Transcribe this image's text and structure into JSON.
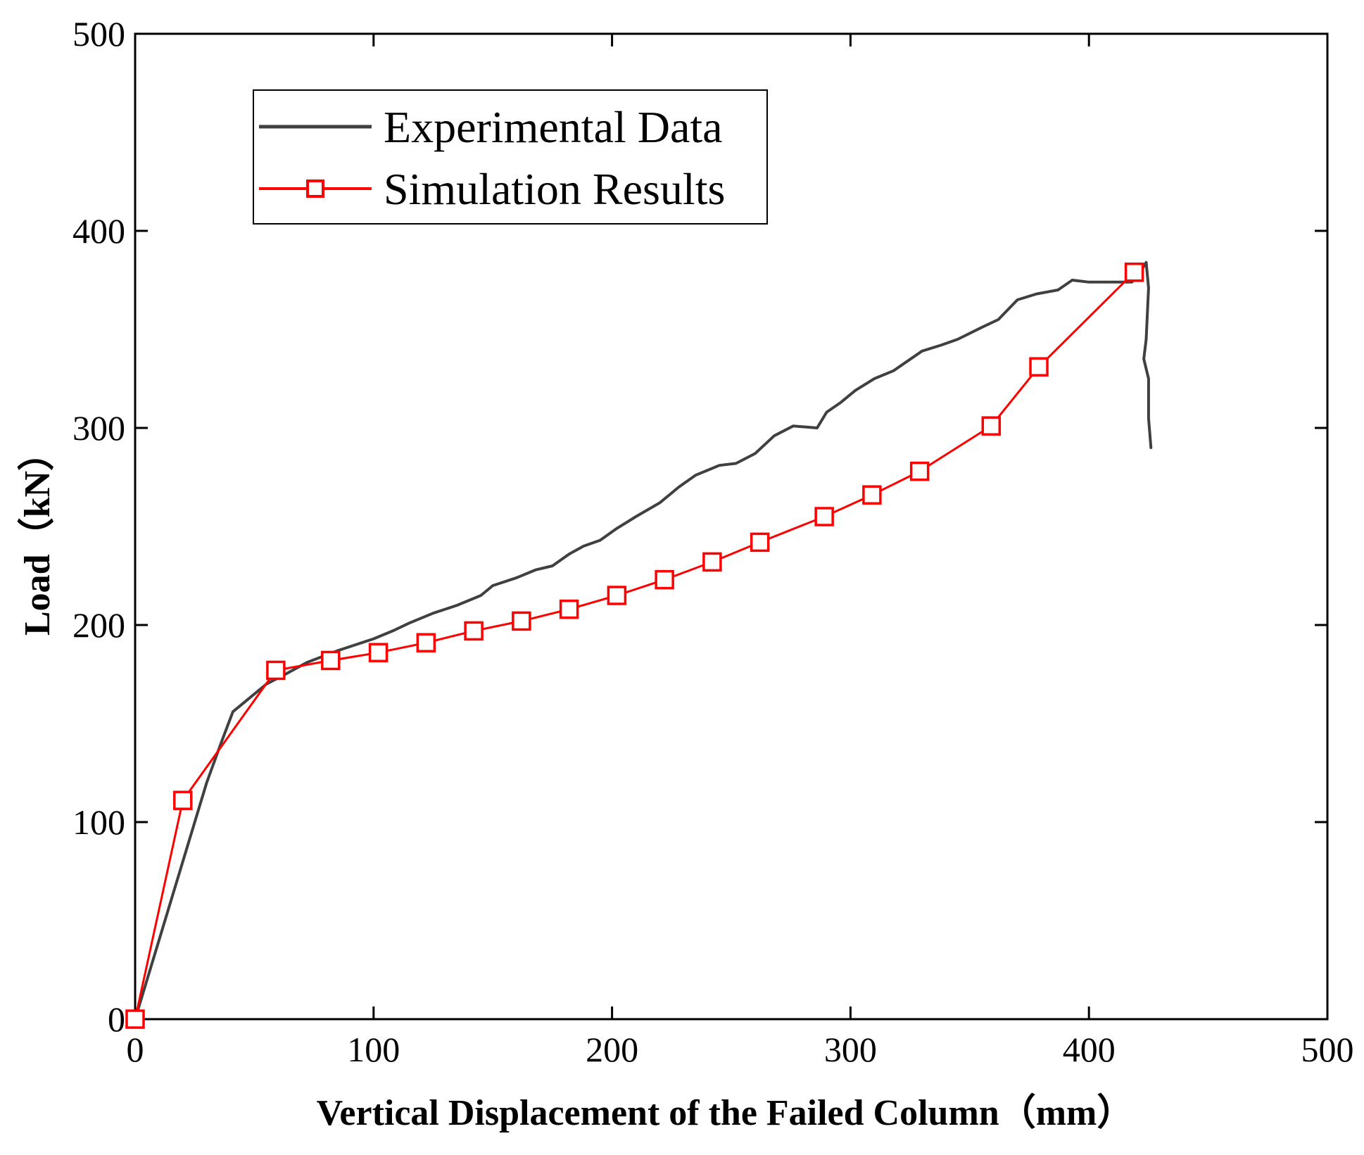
{
  "chart_data": {
    "type": "line",
    "xlabel": "Vertical Displacement of the Failed Column（mm）",
    "ylabel": "Load（kN）",
    "xlim": [
      0,
      500
    ],
    "ylim": [
      0,
      500
    ],
    "xticks": [
      0,
      100,
      200,
      300,
      400,
      500
    ],
    "yticks": [
      0,
      100,
      200,
      300,
      400,
      500
    ],
    "grid": false,
    "legend_position": "top-left",
    "series": [
      {
        "name": "Experimental Data",
        "color": "#404040",
        "marker": "none",
        "points": [
          [
            0,
            0
          ],
          [
            15,
            60
          ],
          [
            30,
            120
          ],
          [
            36,
            140
          ],
          [
            41,
            156
          ],
          [
            47,
            162
          ],
          [
            55,
            170
          ],
          [
            63,
            175
          ],
          [
            72,
            181
          ],
          [
            85,
            187
          ],
          [
            100,
            193
          ],
          [
            108,
            197
          ],
          [
            115,
            201
          ],
          [
            125,
            206
          ],
          [
            135,
            210
          ],
          [
            145,
            215
          ],
          [
            150,
            220
          ],
          [
            160,
            224
          ],
          [
            168,
            228
          ],
          [
            175,
            230
          ],
          [
            182,
            236
          ],
          [
            188,
            240
          ],
          [
            195,
            243
          ],
          [
            202,
            249
          ],
          [
            210,
            255
          ],
          [
            220,
            262
          ],
          [
            228,
            270
          ],
          [
            235,
            276
          ],
          [
            245,
            281
          ],
          [
            252,
            282
          ],
          [
            260,
            287
          ],
          [
            268,
            296
          ],
          [
            276,
            301
          ],
          [
            286,
            300
          ],
          [
            290,
            308
          ],
          [
            296,
            313
          ],
          [
            302,
            319
          ],
          [
            310,
            325
          ],
          [
            318,
            329
          ],
          [
            324,
            334
          ],
          [
            330,
            339
          ],
          [
            338,
            342
          ],
          [
            345,
            345
          ],
          [
            355,
            351
          ],
          [
            362,
            355
          ],
          [
            370,
            365
          ],
          [
            378,
            368
          ],
          [
            387,
            370
          ],
          [
            393,
            375
          ],
          [
            400,
            374
          ],
          [
            410,
            374
          ],
          [
            418,
            374
          ],
          [
            421,
            378
          ],
          [
            424,
            384
          ],
          [
            425,
            371
          ],
          [
            424,
            345
          ],
          [
            423,
            335
          ],
          [
            425,
            325
          ],
          [
            425,
            305
          ],
          [
            426,
            290
          ]
        ]
      },
      {
        "name": "Simulation Results",
        "color": "#ff0000",
        "marker": "square",
        "points": [
          [
            0,
            0
          ],
          [
            20,
            111
          ],
          [
            59,
            177
          ],
          [
            82,
            182
          ],
          [
            102,
            186
          ],
          [
            122,
            191
          ],
          [
            142,
            197
          ],
          [
            162,
            202
          ],
          [
            182,
            208
          ],
          [
            202,
            215
          ],
          [
            222,
            223
          ],
          [
            242,
            232
          ],
          [
            262,
            242
          ],
          [
            289,
            255
          ],
          [
            309,
            266
          ],
          [
            329,
            278
          ],
          [
            359,
            301
          ],
          [
            379,
            331
          ],
          [
            419,
            379
          ]
        ]
      }
    ]
  }
}
